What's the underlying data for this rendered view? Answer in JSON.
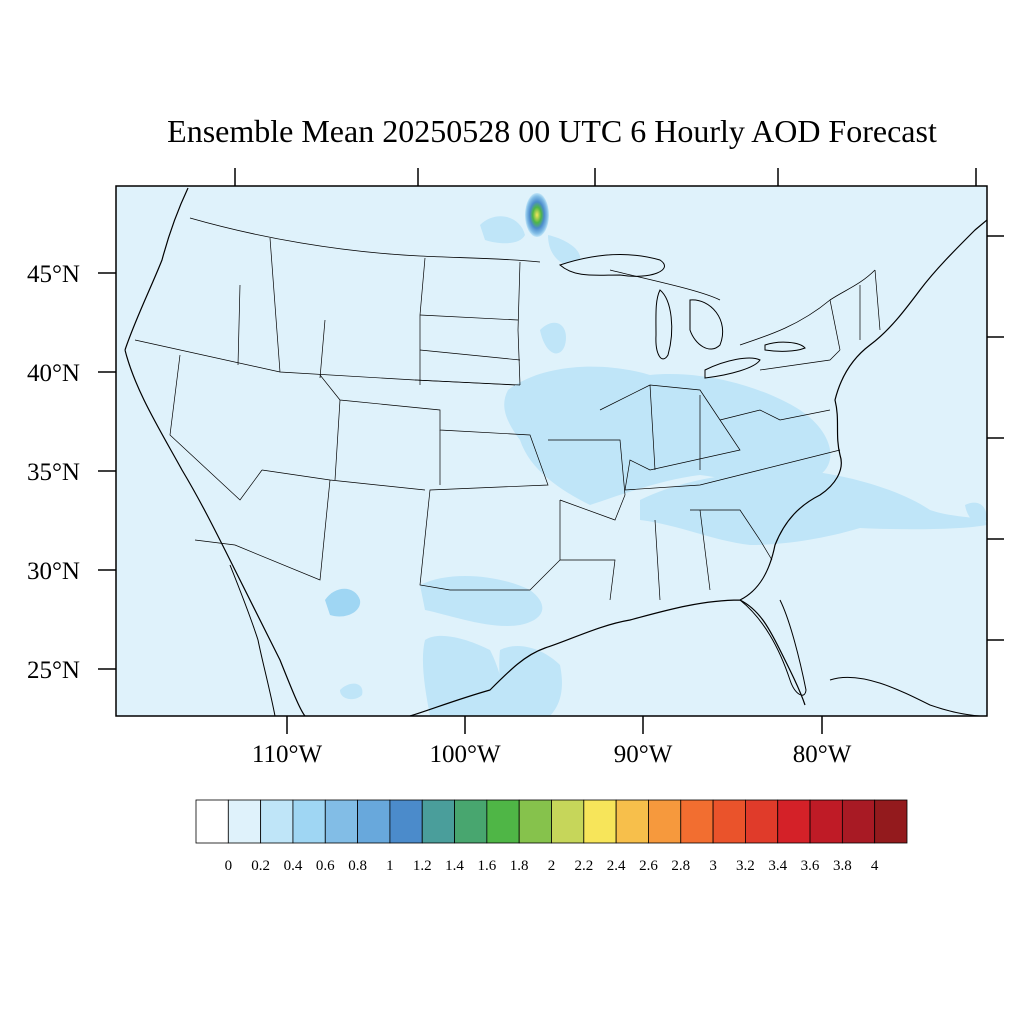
{
  "title": "Ensemble Mean 20250528 00 UTC 6 Hourly AOD Forecast",
  "map": {
    "projection": "lambert-conformal",
    "region": "CONUS",
    "variable": "AOD",
    "lat_labels": [
      "45°N",
      "40°N",
      "35°N",
      "30°N",
      "25°N"
    ],
    "lon_labels": [
      "110°W",
      "100°W",
      "90°W",
      "80°W"
    ],
    "background_color": "#dff2fb",
    "features": [
      {
        "name": "aod-hotspot-minnesota",
        "peak_value": 2.4
      },
      {
        "name": "aod-ohio-valley-plume",
        "value_range": [
          0.2,
          0.4
        ]
      },
      {
        "name": "aod-carolinas-offshore",
        "value_range": [
          0.2,
          0.4
        ]
      },
      {
        "name": "aod-south-texas",
        "value_range": [
          0.2,
          0.4
        ]
      },
      {
        "name": "aod-gulf-of-mexico",
        "value_range": [
          0.2,
          0.4
        ]
      },
      {
        "name": "aod-west-texas",
        "value_range": [
          0.2,
          0.6
        ]
      }
    ]
  },
  "colorbar": {
    "labels": [
      "0",
      "0.2",
      "0.4",
      "0.6",
      "0.8",
      "1",
      "1.2",
      "1.4",
      "1.6",
      "1.8",
      "2",
      "2.2",
      "2.4",
      "2.6",
      "2.8",
      "3",
      "3.2",
      "3.4",
      "3.6",
      "3.8",
      "4"
    ],
    "colors": [
      "#ffffff",
      "#dff2fb",
      "#bfe5f8",
      "#9fd6f3",
      "#82bde6",
      "#68a8dc",
      "#4b8bcb",
      "#4a9e9b",
      "#48a66f",
      "#4fb646",
      "#86c24c",
      "#c6d65a",
      "#f7e55a",
      "#f7bf4b",
      "#f6993d",
      "#f26e30",
      "#ea532b",
      "#e03b2a",
      "#d42128",
      "#bf1b26",
      "#a81a24",
      "#931a1d"
    ]
  }
}
